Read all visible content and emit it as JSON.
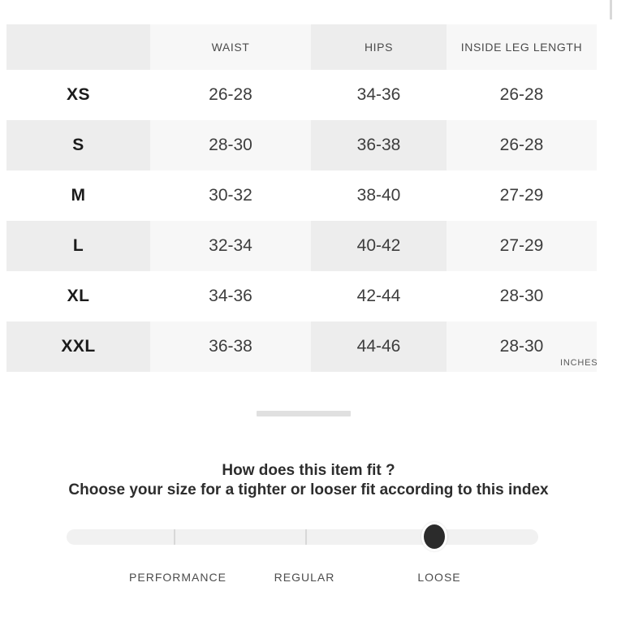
{
  "size_chart": {
    "columns": [
      "WAIST",
      "HIPS",
      "INSIDE LEG LENGTH"
    ],
    "rows": [
      {
        "size": "XS",
        "waist": "26-28",
        "hips": "34-36",
        "inside_leg": "26-28"
      },
      {
        "size": "S",
        "waist": "28-30",
        "hips": "36-38",
        "inside_leg": "26-28"
      },
      {
        "size": "M",
        "waist": "30-32",
        "hips": "38-40",
        "inside_leg": "27-29"
      },
      {
        "size": "L",
        "waist": "32-34",
        "hips": "40-42",
        "inside_leg": "27-29"
      },
      {
        "size": "XL",
        "waist": "34-36",
        "hips": "42-44",
        "inside_leg": "28-30"
      },
      {
        "size": "XXL",
        "waist": "36-38",
        "hips": "44-46",
        "inside_leg": "28-30"
      }
    ],
    "unit_label": "INCHES"
  },
  "fit_index": {
    "heading_line1": "How does this item fit ?",
    "heading_line2": "Choose your size for a tighter or looser fit according to this index",
    "options": [
      "PERFORMANCE",
      "REGULAR",
      "LOOSE"
    ],
    "selected": "LOOSE"
  },
  "colors": {
    "cell_shade_dark": "#ededed",
    "cell_shade_light": "#f7f7f7",
    "slider_track": "#f1f1f1",
    "slider_knob": "#2b2b2b"
  }
}
